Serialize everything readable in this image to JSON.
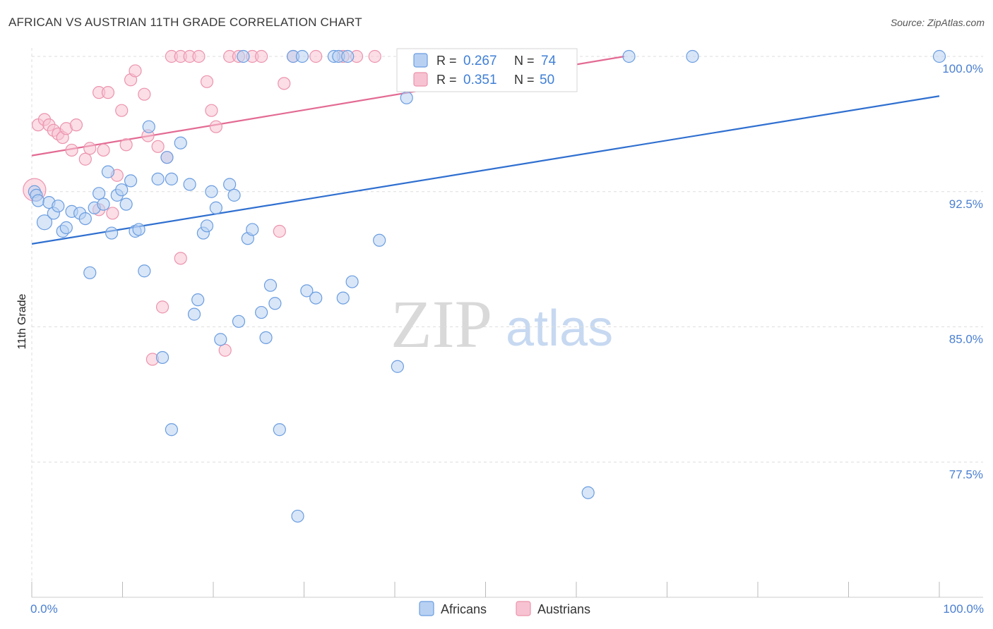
{
  "title": "AFRICAN VS AUSTRIAN 11TH GRADE CORRELATION CHART",
  "source": "Source: ZipAtlas.com",
  "watermark": {
    "zip": "ZIP",
    "atlas": "atlas"
  },
  "colors": {
    "blue_fill": "#b8d1f3",
    "blue_stroke": "#6b9de0",
    "blue_line": "#2f6fd0",
    "pink_fill": "#f7c3d2",
    "pink_stroke": "#ec93ad",
    "pink_line": "#e36a93",
    "grid": "#dddddd",
    "tick_text": "#4a7fd0"
  },
  "legend": {
    "r_label": "R =",
    "n_label": "N =",
    "rows": [
      {
        "series": "Africans",
        "r": "0.267",
        "n": "74"
      },
      {
        "series": "Austrians",
        "r": "0.351",
        "n": "50"
      }
    ]
  },
  "bottom_legend": [
    "Africans",
    "Austrians"
  ],
  "chart_data": {
    "type": "scatter",
    "title": "AFRICAN VS AUSTRIAN 11TH GRADE CORRELATION CHART",
    "xlabel": "",
    "ylabel": "11th Grade",
    "xlim": [
      0,
      100
    ],
    "ylim": [
      71.0,
      101.0
    ],
    "x_tick_labels": [
      {
        "value": 0,
        "label": "0.0%"
      },
      {
        "value": 100,
        "label": "100.0%"
      }
    ],
    "y_ticks": [
      {
        "value": 100.0,
        "label": "100.0%"
      },
      {
        "value": 92.5,
        "label": "92.5%"
      },
      {
        "value": 85.0,
        "label": "85.0%"
      },
      {
        "value": 77.5,
        "label": "77.5%"
      }
    ],
    "grid": true,
    "legend_position": "top-center",
    "series": [
      {
        "name": "Africans",
        "trend": {
          "x": [
            0,
            100
          ],
          "y": [
            89.6,
            97.8
          ]
        },
        "points": [
          [
            0.3,
            92.5
          ],
          [
            0.5,
            92.3
          ],
          [
            0.7,
            92.0
          ],
          [
            1.4,
            90.8
          ],
          [
            1.9,
            91.9
          ],
          [
            2.4,
            91.3
          ],
          [
            2.9,
            91.7
          ],
          [
            3.4,
            90.3
          ],
          [
            3.8,
            90.5
          ],
          [
            4.4,
            91.4
          ],
          [
            5.3,
            91.3
          ],
          [
            5.9,
            91.0
          ],
          [
            6.4,
            88.0
          ],
          [
            6.9,
            91.6
          ],
          [
            7.4,
            92.4
          ],
          [
            7.9,
            91.8
          ],
          [
            8.4,
            93.6
          ],
          [
            8.8,
            90.2
          ],
          [
            9.4,
            92.3
          ],
          [
            9.9,
            92.6
          ],
          [
            10.4,
            91.8
          ],
          [
            10.9,
            93.1
          ],
          [
            11.4,
            90.3
          ],
          [
            11.8,
            90.4
          ],
          [
            12.4,
            88.1
          ],
          [
            12.9,
            96.1
          ],
          [
            13.9,
            93.2
          ],
          [
            14.9,
            94.4
          ],
          [
            14.4,
            83.3
          ],
          [
            15.4,
            93.2
          ],
          [
            15.4,
            79.3
          ],
          [
            16.4,
            95.2
          ],
          [
            17.4,
            92.9
          ],
          [
            17.9,
            85.7
          ],
          [
            18.3,
            86.5
          ],
          [
            18.9,
            90.2
          ],
          [
            19.3,
            90.6
          ],
          [
            19.8,
            92.5
          ],
          [
            20.3,
            91.6
          ],
          [
            20.8,
            84.3
          ],
          [
            21.8,
            92.9
          ],
          [
            22.3,
            92.3
          ],
          [
            22.8,
            85.3
          ],
          [
            23.3,
            100.0
          ],
          [
            23.8,
            89.9
          ],
          [
            24.3,
            90.4
          ],
          [
            25.3,
            85.8
          ],
          [
            25.8,
            84.4
          ],
          [
            26.3,
            87.3
          ],
          [
            26.8,
            86.3
          ],
          [
            27.3,
            79.3
          ],
          [
            28.8,
            100.0
          ],
          [
            29.3,
            74.5
          ],
          [
            29.8,
            100.0
          ],
          [
            30.3,
            87.0
          ],
          [
            31.3,
            86.6
          ],
          [
            33.3,
            100.0
          ],
          [
            33.8,
            100.0
          ],
          [
            34.3,
            86.6
          ],
          [
            34.8,
            100.0
          ],
          [
            35.3,
            87.5
          ],
          [
            38.3,
            89.8
          ],
          [
            40.3,
            82.8
          ],
          [
            41.3,
            97.7
          ],
          [
            42.3,
            100.0
          ],
          [
            43.3,
            99.5
          ],
          [
            44.3,
            100.0
          ],
          [
            48.3,
            100.0
          ],
          [
            54.3,
            100.0
          ],
          [
            59.3,
            100.0
          ],
          [
            61.3,
            75.8
          ],
          [
            65.8,
            100.0
          ],
          [
            72.8,
            100.0
          ],
          [
            100.0,
            100.0
          ]
        ]
      },
      {
        "name": "Austrians",
        "trend": {
          "x": [
            0,
            65.3
          ],
          "y": [
            94.5,
            100.0
          ]
        },
        "points": [
          [
            0.3,
            92.6
          ],
          [
            0.7,
            96.2
          ],
          [
            1.4,
            96.5
          ],
          [
            1.9,
            96.2
          ],
          [
            2.4,
            95.9
          ],
          [
            2.9,
            95.7
          ],
          [
            3.4,
            95.5
          ],
          [
            3.8,
            96.0
          ],
          [
            4.4,
            94.8
          ],
          [
            4.9,
            96.2
          ],
          [
            5.9,
            94.3
          ],
          [
            6.4,
            94.9
          ],
          [
            7.4,
            91.5
          ],
          [
            7.4,
            98.0
          ],
          [
            7.9,
            94.8
          ],
          [
            8.4,
            98.0
          ],
          [
            8.9,
            91.3
          ],
          [
            9.4,
            93.4
          ],
          [
            9.9,
            97.0
          ],
          [
            10.4,
            95.1
          ],
          [
            10.9,
            98.7
          ],
          [
            11.4,
            99.2
          ],
          [
            12.4,
            97.9
          ],
          [
            12.8,
            95.6
          ],
          [
            13.3,
            83.2
          ],
          [
            13.9,
            95.0
          ],
          [
            14.4,
            86.1
          ],
          [
            14.9,
            94.4
          ],
          [
            15.4,
            100.0
          ],
          [
            16.4,
            88.8
          ],
          [
            16.4,
            100.0
          ],
          [
            17.4,
            100.0
          ],
          [
            18.4,
            100.0
          ],
          [
            19.3,
            98.6
          ],
          [
            19.8,
            97.0
          ],
          [
            20.3,
            96.1
          ],
          [
            21.3,
            83.7
          ],
          [
            21.8,
            100.0
          ],
          [
            22.8,
            100.0
          ],
          [
            24.3,
            100.0
          ],
          [
            25.3,
            100.0
          ],
          [
            27.3,
            90.3
          ],
          [
            27.8,
            98.5
          ],
          [
            28.8,
            100.0
          ],
          [
            31.3,
            100.0
          ],
          [
            34.3,
            100.0
          ],
          [
            35.8,
            100.0
          ],
          [
            37.8,
            100.0
          ],
          [
            42.3,
            100.0
          ],
          [
            47.3,
            98.8
          ]
        ]
      }
    ]
  }
}
